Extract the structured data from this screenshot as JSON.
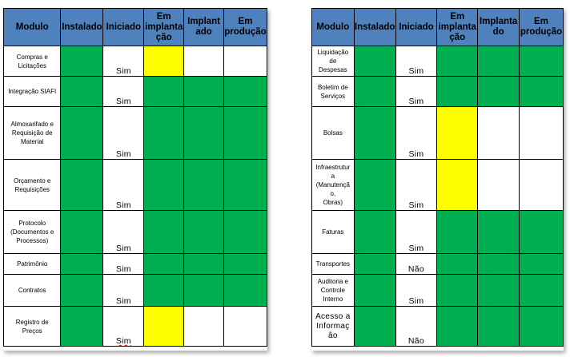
{
  "headers": [
    "Modulo",
    "Instalado",
    "Iniciado",
    "Em implantação",
    "Implantado",
    "Em produção"
  ],
  "header_lines": {
    "left": [
      [
        "Modulo"
      ],
      [
        "Instalado"
      ],
      [
        "Iniciado"
      ],
      [
        "Em",
        "implanta",
        "ção"
      ],
      [
        "Implant",
        "ado"
      ],
      [
        "Em",
        "produção"
      ]
    ],
    "right": [
      [
        "Modulo"
      ],
      [
        "Instalado"
      ],
      [
        "Iniciado"
      ],
      [
        "Em",
        "implanta",
        "ção"
      ],
      [
        "Implanta",
        "do"
      ],
      [
        "Em",
        "produção"
      ]
    ]
  },
  "colors": {
    "header": "#4f81bd",
    "green": "#00b050",
    "yellow": "#ffff00",
    "white": "#ffffff"
  },
  "left_table": [
    {
      "modulo": [
        "Compras e",
        "Licitações"
      ],
      "iniciado": "Sim",
      "status": [
        "green",
        "white",
        "yellow",
        "white",
        "white"
      ]
    },
    {
      "modulo": [
        "Integração SIAFI"
      ],
      "iniciado": "Sim",
      "status": [
        "green",
        "white",
        "green",
        "green",
        "green"
      ]
    },
    {
      "modulo": [
        "Almoxarifado e",
        "Requisição de",
        "Material"
      ],
      "iniciado": "Sim",
      "status": [
        "green",
        "white",
        "green",
        "green",
        "green"
      ]
    },
    {
      "modulo": [
        "Orçamento e",
        "Requisições"
      ],
      "iniciado": "Sim",
      "status": [
        "green",
        "white",
        "green",
        "green",
        "green"
      ]
    },
    {
      "modulo": [
        "Protocolo",
        "(Documentos e",
        "Processos)"
      ],
      "iniciado": "Sim",
      "status": [
        "green",
        "white",
        "green",
        "green",
        "green"
      ]
    },
    {
      "modulo": [
        "Patrimônio"
      ],
      "iniciado": "Sim",
      "status": [
        "green",
        "white",
        "green",
        "green",
        "green"
      ]
    },
    {
      "modulo": [
        "Contratos"
      ],
      "iniciado": "Sim",
      "status": [
        "green",
        "white",
        "green",
        "green",
        "green"
      ]
    },
    {
      "modulo": [
        "Registro de",
        "Preços"
      ],
      "iniciado": "Sim",
      "status": [
        "green",
        "white",
        "yellow",
        "white",
        "white"
      ]
    }
  ],
  "right_table": [
    {
      "modulo": [
        "Liquidação de",
        "Despesas"
      ],
      "iniciado": "Sim",
      "status": [
        "green",
        "white",
        "green",
        "green",
        "green"
      ]
    },
    {
      "modulo": [
        "Boletim de",
        "Serviços"
      ],
      "iniciado": "Sim",
      "status": [
        "green",
        "white",
        "green",
        "green",
        "green"
      ]
    },
    {
      "modulo": [
        "Bolsas"
      ],
      "iniciado": "Sim",
      "status": [
        "green",
        "white",
        "yellow",
        "white",
        "white"
      ]
    },
    {
      "modulo": [
        "Infraestrutur",
        "a",
        "(Manutençã",
        "o,",
        "Obras)"
      ],
      "iniciado": "Sim",
      "status": [
        "green",
        "white",
        "yellow",
        "white",
        "white"
      ]
    },
    {
      "modulo": [
        "Faturas"
      ],
      "iniciado": "Sim",
      "status": [
        "green",
        "white",
        "green",
        "green",
        "green"
      ]
    },
    {
      "modulo": [
        "Transportes"
      ],
      "iniciado": "Não",
      "status": [
        "green",
        "white",
        "green",
        "green",
        "green"
      ]
    },
    {
      "modulo": [
        "Auditoria e",
        "Controle",
        "Interno"
      ],
      "iniciado": "Sim",
      "status": [
        "green",
        "white",
        "green",
        "green",
        "green"
      ]
    },
    {
      "modulo": [
        "Acesso a",
        "Informaç",
        "ão"
      ],
      "iniciado": "Não",
      "status": [
        "green",
        "white",
        "green",
        "green",
        "green"
      ]
    }
  ]
}
